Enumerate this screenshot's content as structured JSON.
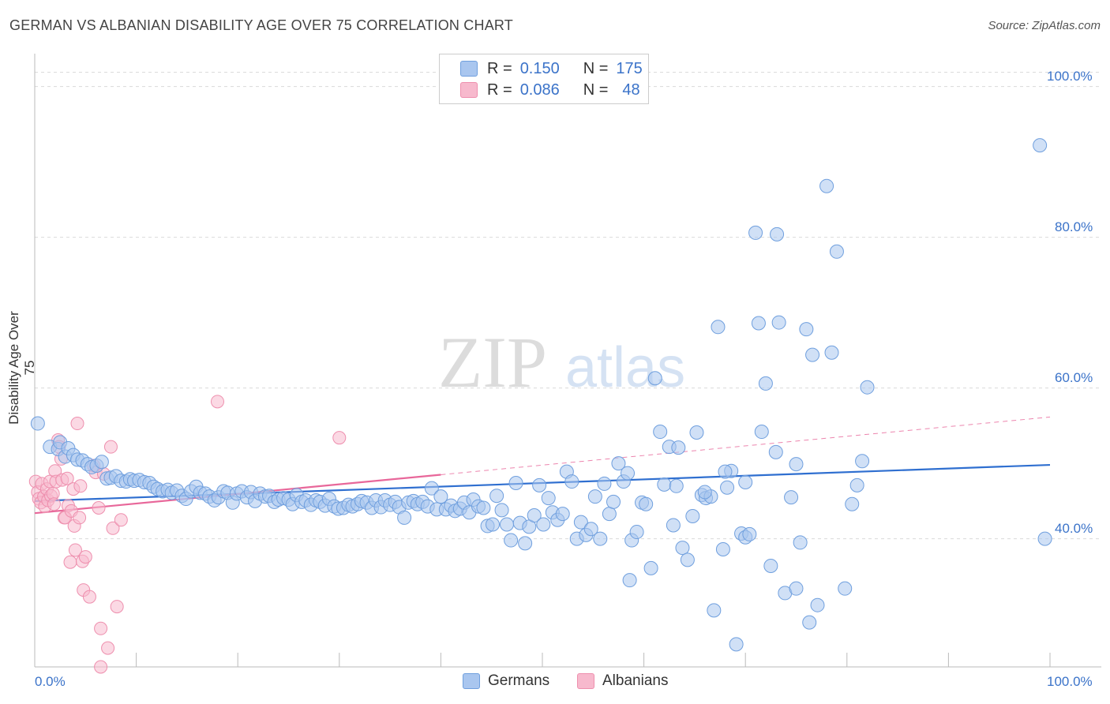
{
  "header": {
    "title": "GERMAN VS ALBANIAN DISABILITY AGE OVER 75 CORRELATION CHART",
    "source": "Source: ZipAtlas.com"
  },
  "legend": {
    "r_label": "R =",
    "n_label": "N =",
    "germans": {
      "r": "0.150",
      "n": "175"
    },
    "albanians": {
      "r": "0.086",
      "n": "48"
    }
  },
  "bottom_legend": {
    "germans": "Germans",
    "albanians": "Albanians"
  },
  "watermark": {
    "zip": "ZIP",
    "atlas": "atlas"
  },
  "colors": {
    "german_fill": "#a9c6ef",
    "german_stroke": "#6f9fde",
    "german_line": "#2f6fd0",
    "albanian_fill": "#f7b9cd",
    "albanian_stroke": "#ee8fae",
    "albanian_line": "#e8679a",
    "accent_text": "#3b73c9"
  },
  "chart_data": {
    "type": "scatter",
    "title": "GERMAN VS ALBANIAN DISABILITY AGE OVER 75 CORRELATION CHART",
    "xlabel": "",
    "ylabel": "Disability Age Over 75",
    "xlim": [
      0,
      100
    ],
    "ylim": [
      23,
      104
    ],
    "x_tick_labels": [
      "0.0%",
      "100.0%"
    ],
    "y_ticks": [
      40,
      60,
      80,
      100
    ],
    "y_tick_labels": [
      "40.0%",
      "60.0%",
      "80.0%",
      "100.0%"
    ],
    "grid": "horizontal dashed",
    "legend_position": "top-center",
    "series": [
      {
        "name": "Germans",
        "r": 0.15,
        "n": 175,
        "trend": {
          "x": [
            0,
            100
          ],
          "y": [
            45.0,
            49.8
          ]
        },
        "points": [
          [
            0.3,
            55.3
          ],
          [
            1.5,
            52.2
          ],
          [
            2.3,
            51.9
          ],
          [
            2.5,
            52.8
          ],
          [
            3.0,
            50.9
          ],
          [
            3.3,
            52.0
          ],
          [
            3.8,
            51.1
          ],
          [
            4.2,
            50.5
          ],
          [
            4.7,
            50.4
          ],
          [
            5.2,
            49.9
          ],
          [
            5.6,
            49.5
          ],
          [
            6.1,
            49.7
          ],
          [
            6.6,
            50.2
          ],
          [
            7.1,
            48.0
          ],
          [
            7.5,
            48.1
          ],
          [
            8.0,
            48.3
          ],
          [
            8.5,
            47.7
          ],
          [
            9.0,
            47.6
          ],
          [
            9.4,
            47.9
          ],
          [
            9.8,
            47.7
          ],
          [
            10.3,
            47.8
          ],
          [
            10.8,
            47.5
          ],
          [
            11.3,
            47.4
          ],
          [
            11.7,
            46.9
          ],
          [
            12.1,
            46.6
          ],
          [
            12.6,
            46.3
          ],
          [
            13.1,
            46.5
          ],
          [
            13.5,
            46.1
          ],
          [
            14.0,
            46.4
          ],
          [
            14.5,
            45.7
          ],
          [
            14.9,
            45.3
          ],
          [
            15.4,
            46.3
          ],
          [
            15.9,
            46.9
          ],
          [
            16.3,
            46.1
          ],
          [
            16.8,
            46.0
          ],
          [
            17.2,
            45.6
          ],
          [
            17.7,
            45.1
          ],
          [
            18.1,
            45.5
          ],
          [
            18.6,
            46.3
          ],
          [
            19.0,
            46.1
          ],
          [
            19.5,
            44.8
          ],
          [
            19.9,
            46.0
          ],
          [
            20.4,
            46.3
          ],
          [
            20.9,
            45.5
          ],
          [
            21.3,
            46.2
          ],
          [
            21.7,
            45.0
          ],
          [
            22.2,
            46.0
          ],
          [
            22.7,
            45.6
          ],
          [
            23.1,
            45.7
          ],
          [
            23.6,
            44.9
          ],
          [
            24.0,
            45.2
          ],
          [
            24.5,
            45.4
          ],
          [
            25.0,
            45.2
          ],
          [
            25.4,
            44.6
          ],
          [
            25.8,
            45.8
          ],
          [
            26.3,
            44.9
          ],
          [
            26.7,
            45.1
          ],
          [
            27.2,
            44.5
          ],
          [
            27.7,
            45.1
          ],
          [
            28.1,
            44.9
          ],
          [
            28.6,
            44.4
          ],
          [
            29.0,
            45.3
          ],
          [
            29.5,
            44.3
          ],
          [
            29.9,
            44.0
          ],
          [
            30.4,
            44.1
          ],
          [
            30.9,
            44.5
          ],
          [
            31.3,
            44.3
          ],
          [
            31.8,
            44.6
          ],
          [
            32.2,
            45.0
          ],
          [
            32.7,
            44.8
          ],
          [
            33.2,
            44.1
          ],
          [
            33.6,
            45.1
          ],
          [
            34.1,
            44.2
          ],
          [
            34.5,
            45.1
          ],
          [
            35.0,
            44.5
          ],
          [
            35.5,
            44.9
          ],
          [
            35.9,
            44.2
          ],
          [
            36.4,
            42.8
          ],
          [
            36.8,
            44.8
          ],
          [
            37.3,
            45.0
          ],
          [
            37.7,
            44.6
          ],
          [
            38.2,
            44.9
          ],
          [
            38.7,
            44.3
          ],
          [
            39.1,
            46.7
          ],
          [
            39.6,
            43.9
          ],
          [
            40.0,
            45.6
          ],
          [
            40.5,
            43.9
          ],
          [
            41.0,
            44.4
          ],
          [
            41.4,
            43.7
          ],
          [
            41.9,
            44.0
          ],
          [
            42.3,
            44.8
          ],
          [
            42.8,
            43.5
          ],
          [
            43.2,
            45.2
          ],
          [
            43.7,
            44.3
          ],
          [
            44.2,
            44.1
          ],
          [
            44.6,
            41.7
          ],
          [
            45.1,
            41.9
          ],
          [
            45.5,
            45.7
          ],
          [
            46.0,
            43.8
          ],
          [
            46.5,
            41.9
          ],
          [
            46.9,
            39.8
          ],
          [
            47.4,
            47.4
          ],
          [
            47.8,
            42.1
          ],
          [
            48.3,
            39.4
          ],
          [
            48.7,
            41.6
          ],
          [
            49.2,
            43.1
          ],
          [
            49.7,
            47.1
          ],
          [
            50.1,
            41.9
          ],
          [
            50.6,
            45.4
          ],
          [
            51.0,
            43.5
          ],
          [
            51.5,
            42.5
          ],
          [
            52.0,
            43.3
          ],
          [
            52.4,
            48.9
          ],
          [
            52.9,
            47.6
          ],
          [
            53.4,
            40.0
          ],
          [
            53.8,
            42.2
          ],
          [
            54.3,
            40.5
          ],
          [
            54.8,
            41.3
          ],
          [
            55.2,
            45.6
          ],
          [
            55.7,
            40.0
          ],
          [
            56.1,
            47.3
          ],
          [
            56.6,
            43.3
          ],
          [
            57.0,
            44.9
          ],
          [
            57.5,
            50.0
          ],
          [
            58.0,
            47.6
          ],
          [
            58.4,
            48.7
          ],
          [
            58.8,
            39.8
          ],
          [
            59.3,
            40.9
          ],
          [
            59.8,
            44.8
          ],
          [
            60.2,
            44.6
          ],
          [
            60.7,
            36.1
          ],
          [
            61.1,
            61.3
          ],
          [
            61.6,
            54.2
          ],
          [
            62.0,
            47.2
          ],
          [
            62.5,
            52.2
          ],
          [
            62.9,
            41.8
          ],
          [
            63.4,
            52.1
          ],
          [
            63.8,
            38.8
          ],
          [
            64.3,
            37.2
          ],
          [
            64.8,
            43.0
          ],
          [
            65.2,
            54.1
          ],
          [
            65.7,
            45.8
          ],
          [
            66.1,
            45.4
          ],
          [
            66.6,
            45.6
          ],
          [
            66.9,
            30.5
          ],
          [
            67.3,
            68.1
          ],
          [
            67.8,
            38.6
          ],
          [
            68.2,
            46.8
          ],
          [
            68.6,
            49.0
          ],
          [
            69.1,
            26.0
          ],
          [
            69.6,
            40.7
          ],
          [
            70.0,
            40.2
          ],
          [
            70.4,
            40.6
          ],
          [
            71.0,
            80.6
          ],
          [
            71.3,
            68.6
          ],
          [
            71.6,
            54.2
          ],
          [
            72.0,
            60.6
          ],
          [
            72.5,
            36.4
          ],
          [
            73.1,
            80.4
          ],
          [
            73.3,
            68.7
          ],
          [
            73.9,
            32.8
          ],
          [
            74.5,
            45.5
          ],
          [
            75.0,
            33.4
          ],
          [
            75.4,
            39.5
          ],
          [
            76.0,
            67.8
          ],
          [
            76.6,
            64.4
          ],
          [
            77.1,
            31.2
          ],
          [
            78.0,
            86.8
          ],
          [
            78.5,
            64.7
          ],
          [
            79.0,
            78.1
          ],
          [
            79.8,
            33.4
          ],
          [
            80.5,
            44.6
          ],
          [
            81.0,
            47.1
          ],
          [
            81.5,
            50.3
          ],
          [
            82.0,
            60.1
          ],
          [
            99.0,
            92.2
          ],
          [
            99.5,
            40.0
          ],
          [
            76.3,
            28.9
          ],
          [
            58.6,
            34.5
          ],
          [
            63.2,
            47.0
          ],
          [
            66.0,
            46.2
          ],
          [
            68.0,
            48.9
          ],
          [
            70.0,
            47.5
          ],
          [
            73.0,
            51.5
          ],
          [
            75.0,
            49.9
          ]
        ]
      },
      {
        "name": "Albanians",
        "r": 0.086,
        "n": 48,
        "trend": {
          "x": [
            0,
            40
          ],
          "y": [
            43.4,
            48.5
          ]
        },
        "points": [
          [
            0.1,
            47.6
          ],
          [
            0.3,
            46.2
          ],
          [
            0.4,
            45.3
          ],
          [
            0.6,
            44.8
          ],
          [
            0.7,
            47.3
          ],
          [
            0.9,
            45.6
          ],
          [
            1.0,
            44.3
          ],
          [
            1.2,
            46.6
          ],
          [
            1.3,
            45.1
          ],
          [
            1.5,
            47.6
          ],
          [
            1.6,
            45.7
          ],
          [
            1.8,
            46.0
          ],
          [
            1.9,
            44.6
          ],
          [
            2.0,
            49.0
          ],
          [
            2.1,
            47.6
          ],
          [
            2.3,
            53.1
          ],
          [
            2.4,
            52.2
          ],
          [
            2.6,
            50.6
          ],
          [
            2.7,
            47.8
          ],
          [
            2.9,
            42.8
          ],
          [
            3.0,
            42.8
          ],
          [
            3.2,
            48.0
          ],
          [
            3.3,
            44.4
          ],
          [
            3.5,
            36.9
          ],
          [
            3.6,
            43.7
          ],
          [
            3.8,
            46.6
          ],
          [
            3.9,
            41.7
          ],
          [
            4.0,
            38.5
          ],
          [
            4.2,
            55.3
          ],
          [
            4.4,
            42.8
          ],
          [
            4.5,
            47.0
          ],
          [
            4.7,
            37.0
          ],
          [
            4.8,
            33.2
          ],
          [
            5.0,
            37.6
          ],
          [
            5.4,
            32.3
          ],
          [
            5.8,
            49.7
          ],
          [
            6.0,
            48.8
          ],
          [
            6.3,
            44.1
          ],
          [
            6.5,
            28.1
          ],
          [
            6.8,
            48.6
          ],
          [
            7.2,
            25.5
          ],
          [
            7.5,
            52.2
          ],
          [
            7.7,
            41.4
          ],
          [
            8.1,
            31.0
          ],
          [
            8.5,
            42.5
          ],
          [
            6.5,
            23.0
          ],
          [
            18.0,
            58.2
          ],
          [
            30.0,
            53.4
          ]
        ]
      }
    ]
  }
}
